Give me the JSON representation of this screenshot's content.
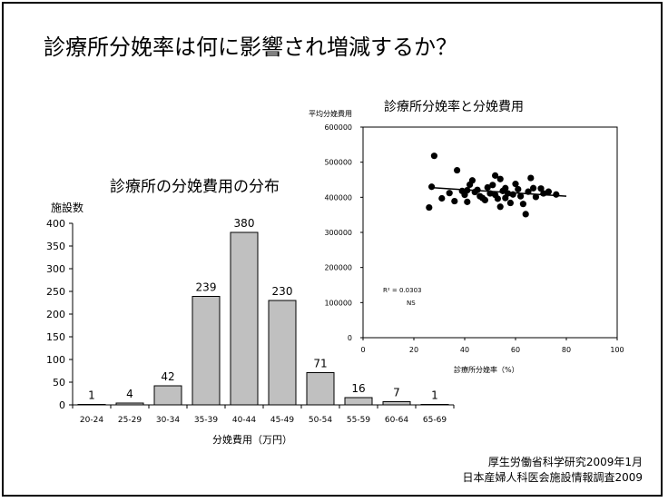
{
  "slide": {
    "title": "診療所分娩率は何に影響され増減するか？",
    "source_line1": "厚生労働省科学研究2009年1月",
    "source_line2": "日本産婦人科医会施設情報調査2009"
  },
  "chart_data": [
    {
      "type": "bar",
      "title": "診療所の分娩費用の分布",
      "xlabel": "分娩費用（万円）",
      "ylabel": "施設数",
      "categories": [
        "20-24",
        "25-29",
        "30-34",
        "35-39",
        "40-44",
        "45-49",
        "50-54",
        "55-59",
        "60-64",
        "65-69"
      ],
      "values": [
        1,
        4,
        42,
        239,
        380,
        230,
        71,
        16,
        7,
        1
      ],
      "ylim": [
        0,
        400
      ],
      "yticks": [
        0,
        50,
        100,
        150,
        200,
        250,
        300,
        350,
        400
      ],
      "bar_color": "#c0c0c0",
      "grid": false
    },
    {
      "type": "scatter",
      "title": "診療所分娩率と分娩費用",
      "xlabel": "診療所分娩率（%）",
      "ylabel": "平均分娩費用",
      "xlim": [
        0,
        100
      ],
      "ylim": [
        0,
        600000
      ],
      "xticks": [
        0,
        20,
        40,
        60,
        80,
        100
      ],
      "yticks": [
        0,
        100000,
        200000,
        300000,
        400000,
        500000,
        600000
      ],
      "annotation_r2": "R² = 0.0303",
      "annotation_ns": "NS",
      "trendline": {
        "x": [
          26,
          80
        ],
        "y": [
          428000,
          403000
        ]
      },
      "points": [
        [
          28,
          518000
        ],
        [
          26,
          371000
        ],
        [
          27,
          430000
        ],
        [
          31,
          397000
        ],
        [
          34,
          412000
        ],
        [
          36,
          389000
        ],
        [
          37,
          477000
        ],
        [
          39,
          418000
        ],
        [
          40,
          407000
        ],
        [
          41,
          420000
        ],
        [
          41,
          387000
        ],
        [
          42,
          436000
        ],
        [
          43,
          448000
        ],
        [
          44,
          415000
        ],
        [
          45,
          421000
        ],
        [
          46,
          403000
        ],
        [
          47,
          398000
        ],
        [
          48,
          392000
        ],
        [
          49,
          428000
        ],
        [
          50,
          411000
        ],
        [
          51,
          435000
        ],
        [
          52,
          407000
        ],
        [
          52,
          462000
        ],
        [
          53,
          396000
        ],
        [
          54,
          452000
        ],
        [
          54,
          373000
        ],
        [
          55,
          418000
        ],
        [
          56,
          398000
        ],
        [
          56,
          426000
        ],
        [
          57,
          411000
        ],
        [
          58,
          384000
        ],
        [
          59,
          408000
        ],
        [
          60,
          438000
        ],
        [
          61,
          423000
        ],
        [
          62,
          403000
        ],
        [
          63,
          381000
        ],
        [
          64,
          352000
        ],
        [
          65,
          416000
        ],
        [
          66,
          455000
        ],
        [
          67,
          426000
        ],
        [
          68,
          401000
        ],
        [
          70,
          425000
        ],
        [
          71,
          411000
        ],
        [
          73,
          416000
        ],
        [
          76,
          408000
        ]
      ]
    }
  ]
}
